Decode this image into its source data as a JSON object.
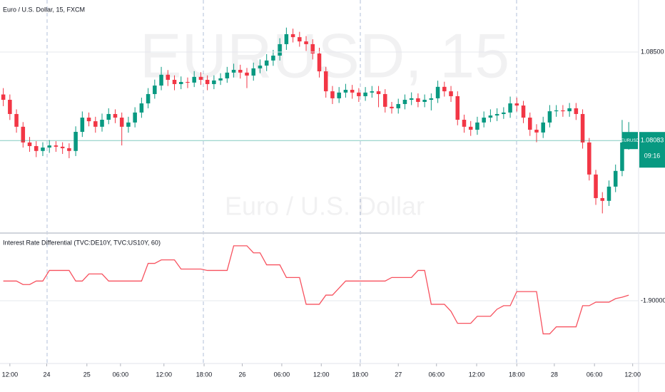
{
  "chart_data": [
    {
      "type": "candlestick",
      "title": "Euro / U.S. Dollar, 15, FXCM",
      "watermark": "EURUSD, 15",
      "subtitle": "Euro / U.S. Dollar",
      "up_color": "#089981",
      "down_color": "#f23645",
      "xlim": [
        -0.5,
        96.5
      ],
      "ylim": [
        1.07654,
        1.08745
      ],
      "yticks": [
        {
          "value": 1.085,
          "label": "1.08500"
        }
      ],
      "xticks": [
        {
          "value": 1.0,
          "label": "12:00"
        },
        {
          "value": 6.6,
          "label": "24"
        },
        {
          "value": 12.7,
          "label": "25"
        },
        {
          "value": 17.8,
          "label": "06:00"
        },
        {
          "value": 24.4,
          "label": "12:00"
        },
        {
          "value": 30.5,
          "label": "18:00"
        },
        {
          "value": 36.3,
          "label": "26"
        },
        {
          "value": 42.3,
          "label": "06:00"
        },
        {
          "value": 48.3,
          "label": "12:00"
        },
        {
          "value": 54.2,
          "label": "18:00"
        },
        {
          "value": 60.0,
          "label": "27"
        },
        {
          "value": 65.8,
          "label": "06:00"
        },
        {
          "value": 71.9,
          "label": "12:00"
        },
        {
          "value": 78.0,
          "label": "18:00"
        },
        {
          "value": 83.7,
          "label": "28"
        },
        {
          "value": 89.8,
          "label": "06:00"
        },
        {
          "value": 95.6,
          "label": "12:00"
        }
      ],
      "symbol": "EURUSD",
      "last_price": {
        "value": 1.08083,
        "label": "1.08083"
      },
      "countdown": "09:16",
      "candles": [
        [
          1.083,
          1.0833,
          1.08245,
          1.08275
        ],
        [
          1.08275,
          1.083,
          1.0818,
          1.08208
        ],
        [
          1.08208,
          1.0823,
          1.0812,
          1.08148
        ],
        [
          1.08148,
          1.0817,
          1.0805,
          1.08074
        ],
        [
          1.08074,
          1.081,
          1.0803,
          1.08057
        ],
        [
          1.08057,
          1.0808,
          1.08005,
          1.08034
        ],
        [
          1.08034,
          1.08075,
          1.0801,
          1.0805
        ],
        [
          1.0805,
          1.08085,
          1.08025,
          1.0806
        ],
        [
          1.0806,
          1.0808,
          1.0803,
          1.08054
        ],
        [
          1.08054,
          1.08075,
          1.0802,
          1.08047
        ],
        [
          1.08047,
          1.0807,
          1.08,
          1.08034
        ],
        [
          1.08034,
          1.0815,
          1.0801,
          1.08124
        ],
        [
          1.08124,
          1.0822,
          1.081,
          1.08191
        ],
        [
          1.08191,
          1.08215,
          1.0815,
          1.08174
        ],
        [
          1.08174,
          1.08195,
          1.0812,
          1.08148
        ],
        [
          1.08148,
          1.0821,
          1.08125,
          1.08181
        ],
        [
          1.08181,
          1.08235,
          1.0816,
          1.08208
        ],
        [
          1.08208,
          1.0823,
          1.08165,
          1.08191
        ],
        [
          1.08191,
          1.08215,
          1.0806,
          1.08148
        ],
        [
          1.08148,
          1.08195,
          1.0812,
          1.08168
        ],
        [
          1.08168,
          1.0824,
          1.08145,
          1.08215
        ],
        [
          1.08215,
          1.08285,
          1.0819,
          1.08258
        ],
        [
          1.08258,
          1.0833,
          1.08235,
          1.08302
        ],
        [
          1.08302,
          1.0837,
          1.0828,
          1.08342
        ],
        [
          1.08342,
          1.0843,
          1.0832,
          1.08393
        ],
        [
          1.08393,
          1.08415,
          1.0834,
          1.08369
        ],
        [
          1.08369,
          1.0839,
          1.0832,
          1.08349
        ],
        [
          1.08349,
          1.08385,
          1.08325,
          1.08359
        ],
        [
          1.08359,
          1.0838,
          1.0833,
          1.08356
        ],
        [
          1.08356,
          1.0841,
          1.08335,
          1.08383
        ],
        [
          1.08383,
          1.08405,
          1.08345,
          1.08369
        ],
        [
          1.08369,
          1.0839,
          1.0832,
          1.08349
        ],
        [
          1.08349,
          1.0839,
          1.08325,
          1.08366
        ],
        [
          1.08366,
          1.084,
          1.08345,
          1.08376
        ],
        [
          1.08376,
          1.0843,
          1.08355,
          1.08403
        ],
        [
          1.08403,
          1.08445,
          1.0838,
          1.08416
        ],
        [
          1.08416,
          1.0844,
          1.08375,
          1.08403
        ],
        [
          1.08403,
          1.08425,
          1.0833,
          1.08389
        ],
        [
          1.08389,
          1.0845,
          1.08365,
          1.08423
        ],
        [
          1.08423,
          1.08465,
          1.084,
          1.08436
        ],
        [
          1.08436,
          1.0849,
          1.0841,
          1.0846
        ],
        [
          1.0846,
          1.0851,
          1.08435,
          1.08483
        ],
        [
          1.08483,
          1.08565,
          1.0846,
          1.08537
        ],
        [
          1.08537,
          1.08615,
          1.0851,
          1.08584
        ],
        [
          1.08584,
          1.0861,
          1.08545,
          1.0857
        ],
        [
          1.0857,
          1.08595,
          1.08525,
          1.0855
        ],
        [
          1.0855,
          1.08575,
          1.08505,
          1.08537
        ],
        [
          1.08537,
          1.0856,
          1.08465,
          1.08493
        ],
        [
          1.08493,
          1.0852,
          1.0838,
          1.08409
        ],
        [
          1.08409,
          1.0843,
          1.08285,
          1.08315
        ],
        [
          1.08315,
          1.0834,
          1.08255,
          1.08282
        ],
        [
          1.08282,
          1.08335,
          1.0826,
          1.08309
        ],
        [
          1.08309,
          1.0835,
          1.08285,
          1.08322
        ],
        [
          1.08322,
          1.08345,
          1.0828,
          1.08309
        ],
        [
          1.08309,
          1.0833,
          1.08265,
          1.08292
        ],
        [
          1.08292,
          1.08335,
          1.0827,
          1.08309
        ],
        [
          1.08309,
          1.0834,
          1.08285,
          1.08315
        ],
        [
          1.08315,
          1.0834,
          1.0824,
          1.08302
        ],
        [
          1.08302,
          1.08325,
          1.08215,
          1.08242
        ],
        [
          1.08242,
          1.08265,
          1.0821,
          1.08235
        ],
        [
          1.08235,
          1.0828,
          1.0821,
          1.08255
        ],
        [
          1.08255,
          1.083,
          1.0823,
          1.08275
        ],
        [
          1.08275,
          1.0831,
          1.0825,
          1.08282
        ],
        [
          1.08282,
          1.08305,
          1.0824,
          1.08265
        ],
        [
          1.08265,
          1.083,
          1.0824,
          1.08275
        ],
        [
          1.08275,
          1.08305,
          1.08225,
          1.08282
        ],
        [
          1.08282,
          1.08365,
          1.0826,
          1.08336
        ],
        [
          1.08336,
          1.0836,
          1.0829,
          1.08315
        ],
        [
          1.08315,
          1.0834,
          1.08265,
          1.08292
        ],
        [
          1.08292,
          1.08315,
          1.08155,
          1.08181
        ],
        [
          1.08181,
          1.08205,
          1.0812,
          1.08148
        ],
        [
          1.08148,
          1.08175,
          1.08105,
          1.08134
        ],
        [
          1.08134,
          1.08195,
          1.0811,
          1.08168
        ],
        [
          1.08168,
          1.0822,
          1.08145,
          1.08191
        ],
        [
          1.08191,
          1.0823,
          1.0817,
          1.08201
        ],
        [
          1.08201,
          1.08235,
          1.08175,
          1.08208
        ],
        [
          1.08208,
          1.0824,
          1.08185,
          1.08215
        ],
        [
          1.08215,
          1.0829,
          1.0819,
          1.08258
        ],
        [
          1.08258,
          1.08285,
          1.0822,
          1.08248
        ],
        [
          1.08248,
          1.0827,
          1.08165,
          1.08191
        ],
        [
          1.08191,
          1.08215,
          1.08105,
          1.08134
        ],
        [
          1.08134,
          1.0816,
          1.08075,
          1.08121
        ],
        [
          1.08121,
          1.08195,
          1.08095,
          1.08168
        ],
        [
          1.08168,
          1.0825,
          1.08145,
          1.08221
        ],
        [
          1.08221,
          1.0825,
          1.08195,
          1.08225
        ],
        [
          1.08225,
          1.0825,
          1.08195,
          1.08221
        ],
        [
          1.08221,
          1.0826,
          1.08195,
          1.08235
        ],
        [
          1.08235,
          1.0826,
          1.0818,
          1.08208
        ],
        [
          1.08208,
          1.0823,
          1.08045,
          1.08074
        ],
        [
          1.08074,
          1.08095,
          1.07895,
          1.07923
        ],
        [
          1.07923,
          1.07945,
          1.0778,
          1.07812
        ],
        [
          1.07812,
          1.0784,
          1.0774,
          1.07799
        ],
        [
          1.07799,
          1.07895,
          1.07775,
          1.07866
        ],
        [
          1.07866,
          1.0797,
          1.0784,
          1.0794
        ],
        [
          1.0794,
          1.0818,
          1.07915,
          1.08074
        ],
        [
          1.08074,
          1.0817,
          1.0804,
          1.08083
        ]
      ]
    },
    {
      "type": "line",
      "title": "Interest Rate Differential (TVC:DE10Y, TVC:US10Y, 60)",
      "color": "#f7525f",
      "ylim": [
        -1.989,
        -1.807
      ],
      "yticks": [
        {
          "value": -1.9,
          "label": "-1.90000"
        }
      ],
      "values": [
        -1.872,
        -1.872,
        -1.872,
        -1.877,
        -1.877,
        -1.872,
        -1.872,
        -1.857,
        -1.857,
        -1.857,
        -1.857,
        -1.872,
        -1.872,
        -1.862,
        -1.862,
        -1.862,
        -1.872,
        -1.872,
        -1.872,
        -1.872,
        -1.872,
        -1.872,
        -1.847,
        -1.847,
        -1.842,
        -1.842,
        -1.842,
        -1.855,
        -1.855,
        -1.855,
        -1.855,
        -1.857,
        -1.857,
        -1.857,
        -1.857,
        -1.822,
        -1.822,
        -1.822,
        -1.832,
        -1.832,
        -1.849,
        -1.849,
        -1.849,
        -1.867,
        -1.867,
        -1.867,
        -1.905,
        -1.905,
        -1.905,
        -1.892,
        -1.892,
        -1.882,
        -1.872,
        -1.872,
        -1.872,
        -1.872,
        -1.872,
        -1.872,
        -1.872,
        -1.867,
        -1.867,
        -1.867,
        -1.867,
        -1.857,
        -1.857,
        -1.905,
        -1.905,
        -1.905,
        -1.915,
        -1.932,
        -1.932,
        -1.932,
        -1.922,
        -1.922,
        -1.922,
        -1.912,
        -1.907,
        -1.907,
        -1.887,
        -1.887,
        -1.887,
        -1.887,
        -1.947,
        -1.947,
        -1.937,
        -1.937,
        -1.937,
        -1.937,
        -1.907,
        -1.907,
        -1.902,
        -1.902,
        -1.902,
        -1.897,
        -1.895,
        -1.892
      ]
    }
  ]
}
